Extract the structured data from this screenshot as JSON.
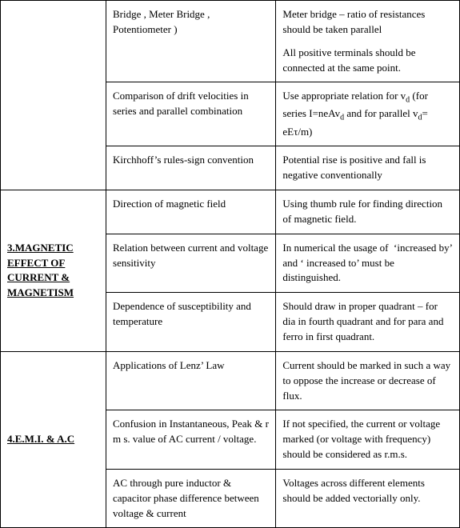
{
  "rows": [
    {
      "section": "",
      "topic": "Bridge , Meter Bridge , Potentiometer )",
      "note_html": "<div class=\"para\">Meter bridge &ndash; ratio of resistances should be taken parallel</div><div class=\"para\">All positive terminals should be connected at the same point.</div>"
    },
    {
      "topic": "Comparison of drift velocities in series and parallel combination",
      "note_html": "Use appropriate relation for v<sub>d</sub> (for series I=neAv<sub>d</sub> and for parallel v<sub>d</sub>= eE&tau;/m)"
    },
    {
      "topic": "Kirchhoff&rsquo;s rules-sign convention",
      "note_html": "Potential rise is positive and fall is negative conventionally"
    },
    {
      "section": "3.MAGNETIC EFFECT OF CURRENT & MAGNETISM",
      "topic": "Direction of magnetic field",
      "note_html": "Using thumb rule for finding direction of magnetic field."
    },
    {
      "topic": "Relation between current and voltage sensitivity",
      "note_html": "In numerical the usage of &nbsp;&lsquo;increased by&rsquo; and &lsquo; increased to&rsquo; must be distinguished."
    },
    {
      "topic": "Dependence of susceptibility and temperature",
      "note_html": "Should draw in proper quadrant &ndash; for dia in fourth quadrant and for para and ferro in first quadrant."
    },
    {
      "section": "4.E.M.I. & A.C",
      "topic": "Applications of Lenz&rsquo; Law",
      "note_html": "Current should be marked in such a way to oppose the increase or decrease of flux."
    },
    {
      "topic": "Confusion in Instantaneous, Peak & r m s. value of AC current / voltage.",
      "note_html": "If not specified, the current or voltage marked (or voltage with frequency) should be considered as r.m.s."
    },
    {
      "topic": "AC through pure inductor & capacitor phase difference between voltage & current",
      "note_html": "Voltages across different elements should be added vectorially only."
    }
  ],
  "spans": [
    3,
    3,
    3
  ]
}
